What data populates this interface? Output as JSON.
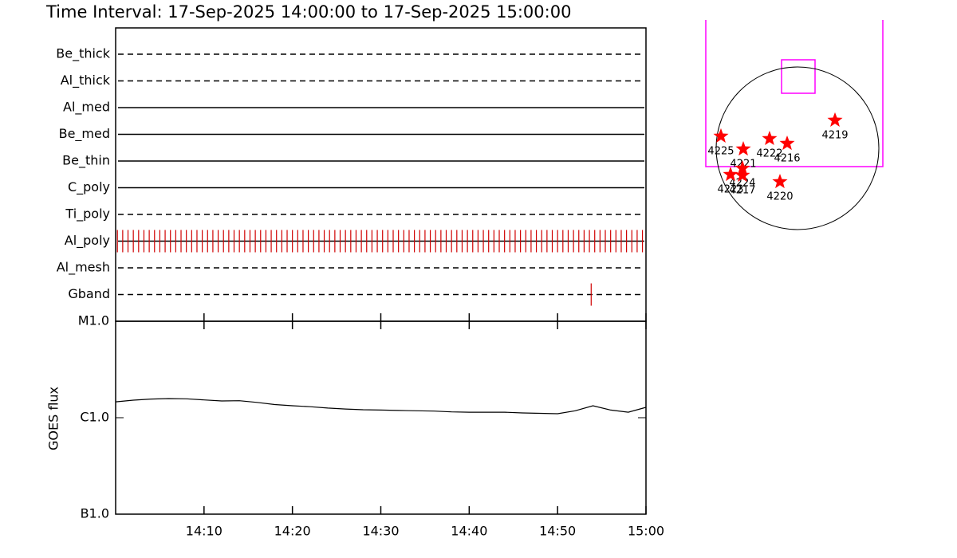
{
  "chart_data": [
    {
      "type": "timeline",
      "title": "Time Interval: 17-Sep-2025 14:00:00 to 17-Sep-2025 15:00:00",
      "xlim": [
        0,
        60
      ],
      "series": [
        {
          "name": "Be_thick",
          "style": "dashed",
          "color": "#d00000",
          "x": []
        },
        {
          "name": "Al_thick",
          "style": "dashed",
          "color": "#d00000",
          "x": []
        },
        {
          "name": "Al_med",
          "style": "solid",
          "color": "#d00000",
          "x": []
        },
        {
          "name": "Be_med",
          "style": "solid",
          "color": "#d00000",
          "x": []
        },
        {
          "name": "Be_thin",
          "style": "solid",
          "color": "#d00000",
          "x": []
        },
        {
          "name": "C_poly",
          "style": "solid",
          "color": "#d00000",
          "x": []
        },
        {
          "name": "Ti_poly",
          "style": "dashed",
          "color": "#d00000",
          "x": []
        },
        {
          "name": "Al_poly",
          "style": "solid",
          "color": "#d00000",
          "x": [
            0.2,
            0.8,
            1.4,
            2.0,
            2.6,
            3.2,
            3.8,
            4.4,
            5.0,
            5.6,
            6.2,
            6.8,
            7.4,
            8.0,
            8.6,
            9.2,
            9.8,
            10.4,
            11.0,
            11.6,
            12.2,
            12.8,
            13.4,
            14.0,
            14.6,
            15.2,
            15.8,
            16.4,
            17.0,
            17.6,
            18.2,
            18.8,
            19.4,
            20.0,
            20.6,
            21.2,
            21.8,
            22.4,
            23.0,
            23.6,
            24.2,
            24.8,
            25.4,
            26.0,
            26.6,
            27.2,
            27.8,
            28.4,
            29.0,
            29.6,
            30.2,
            30.8,
            31.4,
            32.0,
            32.6,
            33.2,
            33.8,
            34.4,
            35.0,
            35.6,
            36.2,
            36.8,
            37.4,
            38.0,
            38.6,
            39.2,
            39.8,
            40.4,
            41.0,
            41.6,
            42.2,
            42.8,
            43.4,
            44.0,
            44.6,
            45.2,
            45.8,
            46.4,
            47.0,
            47.6,
            48.2,
            48.8,
            49.4,
            50.0,
            50.6,
            51.2,
            51.8,
            52.4,
            53.0,
            53.6,
            54.2,
            54.8,
            55.4,
            56.0,
            56.6,
            57.2,
            57.8,
            58.4,
            59.0,
            59.6
          ]
        },
        {
          "name": "Al_mesh",
          "style": "dashed",
          "color": "#d00000",
          "x": []
        },
        {
          "name": "Gband",
          "style": "dashed",
          "color": "#d00000",
          "x": [
            53.8
          ]
        }
      ]
    },
    {
      "type": "line",
      "ylabel": "GOES flux",
      "log": true,
      "color": "#000000",
      "xlim": [
        0,
        60
      ],
      "xticks": [
        {
          "value": 10,
          "label": "14:10"
        },
        {
          "value": 20,
          "label": "14:20"
        },
        {
          "value": 30,
          "label": "14:30"
        },
        {
          "value": 40,
          "label": "14:40"
        },
        {
          "value": 50,
          "label": "14:50"
        },
        {
          "value": 60,
          "label": "15:00"
        }
      ],
      "ylim": [
        1e-07,
        1e-05
      ],
      "yticks": [
        {
          "value": 1e-05,
          "label": "M1.0"
        },
        {
          "value": 1e-06,
          "label": "C1.0"
        },
        {
          "value": 1e-07,
          "label": "B1.0"
        }
      ],
      "x": [
        0,
        2,
        4,
        6,
        8,
        10,
        12,
        14,
        16,
        18,
        20,
        22,
        24,
        26,
        28,
        30,
        32,
        34,
        36,
        38,
        40,
        42,
        44,
        46,
        48,
        50,
        52,
        54,
        56,
        58,
        60
      ],
      "values": [
        1.46e-06,
        1.52e-06,
        1.56e-06,
        1.58e-06,
        1.57e-06,
        1.53e-06,
        1.49e-06,
        1.5e-06,
        1.44e-06,
        1.37e-06,
        1.33e-06,
        1.3e-06,
        1.26e-06,
        1.23e-06,
        1.21e-06,
        1.2e-06,
        1.19e-06,
        1.18e-06,
        1.17e-06,
        1.15e-06,
        1.14e-06,
        1.14e-06,
        1.14e-06,
        1.12e-06,
        1.11e-06,
        1.1e-06,
        1.18e-06,
        1.33e-06,
        1.2e-06,
        1.14e-06,
        1.28e-06
      ]
    },
    {
      "type": "scatter",
      "color": "#ff0000",
      "labels": [
        "4225",
        "4221",
        "4222",
        "4216",
        "4219",
        "4220",
        "4224",
        "4217",
        "4223"
      ],
      "x": [
        -893,
        -632,
        -326,
        -121,
        437,
        -205,
        -642,
        -642,
        -781
      ],
      "values": [
        140,
        -9,
        112,
        56,
        326,
        -391,
        -233,
        -316,
        -307
      ]
    }
  ]
}
